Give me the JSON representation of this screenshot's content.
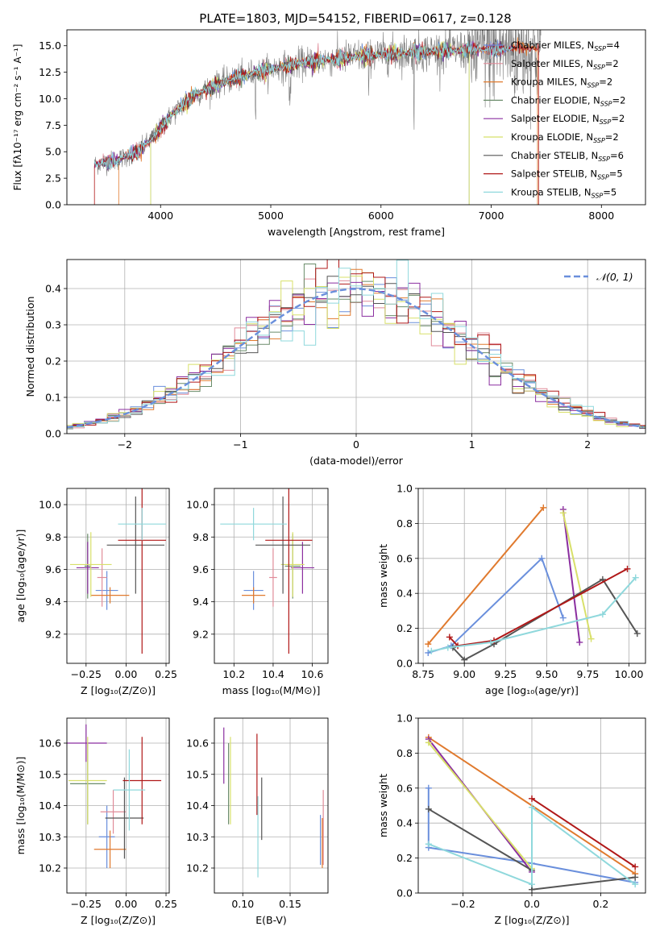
{
  "figure_title": "PLATE=1803, MJD=54152, FIBERID=0617, z=0.128",
  "colors": {
    "Chabrier MILES": "#6a8fdc",
    "Salpeter MILES": "#e08b99",
    "Kroupa MILES": "#e07a2e",
    "Chabrier ELODIE": "#6a8c6a",
    "Salpeter ELODIE": "#8b2fa0",
    "Kroupa ELODIE": "#d8e06a",
    "Chabrier STELIB": "#555555",
    "Salpeter STELIB": "#b01818",
    "Kroupa STELIB": "#8fd8dc",
    "data": "#808080",
    "normal": "#6a8fdc"
  },
  "chart_data": [
    {
      "id": "spectrum",
      "type": "line",
      "xlabel": "wavelength [Angstrom, rest frame]",
      "ylabel": "Flux [fλ10⁻¹⁷ erg cm⁻² s⁻¹ A⁻¹]",
      "xlim": [
        3150,
        8400
      ],
      "ylim": [
        0,
        16.5
      ],
      "xticks": [
        4000,
        5000,
        6000,
        7000,
        8000
      ],
      "yticks": [
        0.0,
        2.5,
        5.0,
        7.5,
        10.0,
        12.5,
        15.0
      ],
      "legend_position": "upper-right",
      "legend": [
        "Chabrier MILES, N_SSP=4",
        "Salpeter MILES, N_SSP=2",
        "Kroupa MILES, N_SSP=2",
        "Chabrier ELODIE, N_SSP=2",
        "Salpeter ELODIE, N_SSP=2",
        "Kroupa ELODIE, N_SSP=2",
        "Chabrier STELIB, N_SSP=6",
        "Salpeter STELIB, N_SSP=5",
        "Kroupa STELIB, N_SSP=5"
      ],
      "continuum": {
        "x": [
          3400,
          3600,
          3800,
          3950,
          4100,
          4300,
          4500,
          4800,
          5000,
          5300,
          5600,
          5900,
          6200,
          6500,
          6800,
          7100,
          7400
        ],
        "y": [
          3.8,
          4.2,
          5.0,
          6.5,
          8.5,
          10.3,
          11.3,
          12.3,
          12.8,
          13.4,
          13.8,
          14.1,
          14.3,
          14.5,
          14.6,
          14.7,
          14.8
        ]
      },
      "cutoffs": [
        {
          "model": "Kroupa MILES",
          "x_start": 3620,
          "x_end": 7420
        },
        {
          "model": "Kroupa ELODIE",
          "x_start": 3910,
          "x_end": 6800
        },
        {
          "model": "Chabrier ELODIE",
          "x_start": 3910,
          "x_end": 6800
        },
        {
          "model": "Salpeter STELIB",
          "x_start": 3400,
          "x_end": 7430
        }
      ]
    },
    {
      "id": "residuals",
      "type": "step",
      "xlabel": "(data-model)/error",
      "ylabel": "Normed distribution",
      "xlim": [
        -2.5,
        2.5
      ],
      "ylim": [
        0,
        0.48
      ],
      "xticks": [
        -2,
        -1,
        0,
        1,
        2
      ],
      "yticks": [
        0.0,
        0.1,
        0.2,
        0.3,
        0.4
      ],
      "legend": [
        "𝒩(0, 1)"
      ],
      "legend_position": "upper-right",
      "bin_width": 0.1,
      "grid": true
    },
    {
      "id": "age_vs_Z",
      "type": "errorbar",
      "xlabel": "Z [log₁₀(Z/Z⊙)]",
      "ylabel": "age  [log₁₀(age/yr)]",
      "xlim": [
        -0.37,
        0.27
      ],
      "ylim": [
        9.02,
        10.1
      ],
      "xticks": [
        -0.25,
        0.0,
        0.25
      ],
      "xticklabels": [
        "−0.25",
        "0.00",
        "0.25"
      ],
      "yticks": [
        9.2,
        9.4,
        9.6,
        9.8,
        10.0
      ],
      "grid": true,
      "points": [
        {
          "model": "Chabrier MILES",
          "x": -0.12,
          "xerr": 0.07,
          "y": 9.47,
          "yerr": 0.12
        },
        {
          "model": "Salpeter MILES",
          "x": -0.15,
          "xerr": 0.03,
          "y": 9.55,
          "yerr": 0.18
        },
        {
          "model": "Kroupa MILES",
          "x": -0.1,
          "xerr": 0.12,
          "y": 9.44,
          "yerr": 0.05
        },
        {
          "model": "Chabrier ELODIE",
          "x": -0.24,
          "xerr": 0.02,
          "y": 9.62,
          "yerr": 0.2
        },
        {
          "model": "Salpeter ELODIE",
          "x": -0.24,
          "xerr": 0.07,
          "y": 9.61,
          "yerr": 0.16
        },
        {
          "model": "Kroupa ELODIE",
          "x": -0.22,
          "xerr": 0.13,
          "y": 9.63,
          "yerr": 0.2
        },
        {
          "model": "Chabrier STELIB",
          "x": 0.06,
          "xerr": 0.18,
          "y": 9.75,
          "yerr": 0.3
        },
        {
          "model": "Salpeter STELIB",
          "x": 0.1,
          "xerr": 0.15,
          "y": 9.78,
          "yerr": 0.7
        },
        {
          "model": "Kroupa STELIB",
          "x": 0.1,
          "xerr": 0.15,
          "y": 9.88,
          "yerr": 0.1
        }
      ]
    },
    {
      "id": "age_vs_mass",
      "type": "errorbar",
      "xlabel": "mass [log₁₀(M/M⊙)]",
      "ylabel": "",
      "xlim": [
        10.1,
        10.68
      ],
      "ylim": [
        9.02,
        10.1
      ],
      "xticks": [
        10.2,
        10.4,
        10.6
      ],
      "yticks": [
        9.2,
        9.4,
        9.6,
        9.8,
        10.0
      ],
      "grid": true,
      "points": [
        {
          "model": "Chabrier MILES",
          "x": 10.3,
          "xerr": 0.05,
          "y": 9.47,
          "yerr": 0.12
        },
        {
          "model": "Salpeter MILES",
          "x": 10.4,
          "xerr": 0.02,
          "y": 9.55,
          "yerr": 0.18
        },
        {
          "model": "Kroupa MILES",
          "x": 10.3,
          "xerr": 0.06,
          "y": 9.44,
          "yerr": 0.05
        },
        {
          "model": "Chabrier ELODIE",
          "x": 10.5,
          "xerr": 0.04,
          "y": 9.62,
          "yerr": 0.2
        },
        {
          "model": "Salpeter ELODIE",
          "x": 10.55,
          "xerr": 0.06,
          "y": 9.61,
          "yerr": 0.16
        },
        {
          "model": "Kroupa ELODIE",
          "x": 10.5,
          "xerr": 0.06,
          "y": 9.63,
          "yerr": 0.2
        },
        {
          "model": "Chabrier STELIB",
          "x": 10.45,
          "xerr": 0.14,
          "y": 9.75,
          "yerr": 0.3
        },
        {
          "model": "Salpeter STELIB",
          "x": 10.48,
          "xerr": 0.12,
          "y": 9.78,
          "yerr": 0.7
        },
        {
          "model": "Kroupa STELIB",
          "x": 10.3,
          "xerr": 0.17,
          "y": 9.88,
          "yerr": 0.1
        }
      ]
    },
    {
      "id": "weight_vs_age",
      "type": "line",
      "xlabel": "age  [log₁₀(age/yr)]",
      "ylabel": "mass weight",
      "xlim": [
        8.72,
        10.1
      ],
      "ylim": [
        0,
        1
      ],
      "xticks": [
        8.75,
        9.0,
        9.25,
        9.5,
        9.75,
        10.0
      ],
      "xticklabels": [
        "8.75",
        "9.00",
        "9.25",
        "9.50",
        "9.75",
        "10.00"
      ],
      "yticks": [
        0.0,
        0.2,
        0.4,
        0.6,
        0.8,
        1.0
      ],
      "grid": true,
      "series": [
        {
          "model": "Chabrier MILES",
          "x": [
            8.78,
            8.92,
            9.47,
            9.6
          ],
          "y": [
            0.06,
            0.1,
            0.6,
            0.26
          ]
        },
        {
          "model": "Kroupa MILES",
          "x": [
            8.78,
            9.48
          ],
          "y": [
            0.11,
            0.89
          ]
        },
        {
          "model": "Salpeter ELODIE",
          "x": [
            9.6,
            9.7
          ],
          "y": [
            0.88,
            0.12
          ]
        },
        {
          "model": "Kroupa ELODIE",
          "x": [
            9.6,
            9.77
          ],
          "y": [
            0.86,
            0.14
          ]
        },
        {
          "model": "Chabrier STELIB",
          "x": [
            8.93,
            9.0,
            9.18,
            9.84,
            10.05
          ],
          "y": [
            0.09,
            0.02,
            0.11,
            0.48,
            0.17
          ]
        },
        {
          "model": "Salpeter STELIB",
          "x": [
            8.91,
            8.96,
            9.18,
            9.99
          ],
          "y": [
            0.15,
            0.1,
            0.13,
            0.54
          ]
        },
        {
          "model": "Kroupa STELIB",
          "x": [
            8.8,
            8.9,
            9.16,
            9.84,
            10.04
          ],
          "y": [
            0.07,
            0.09,
            0.12,
            0.28,
            0.49
          ]
        }
      ]
    },
    {
      "id": "mass_vs_Z",
      "type": "errorbar",
      "xlabel": "Z [log₁₀(Z/Z⊙)]",
      "ylabel": "mass [log₁₀(M/M⊙)]",
      "xlim": [
        -0.37,
        0.27
      ],
      "ylim": [
        10.12,
        10.68
      ],
      "xticks": [
        -0.25,
        0.0,
        0.25
      ],
      "xticklabels": [
        "−0.25",
        "0.00",
        "0.25"
      ],
      "yticks": [
        10.2,
        10.3,
        10.4,
        10.5,
        10.6
      ],
      "grid": true,
      "points": [
        {
          "model": "Chabrier MILES",
          "x": -0.12,
          "xerr": 0.05,
          "y": 10.3,
          "yerr": 0.1
        },
        {
          "model": "Salpeter MILES",
          "x": -0.08,
          "xerr": 0.08,
          "y": 10.38,
          "yerr": 0.07
        },
        {
          "model": "Kroupa MILES",
          "x": -0.1,
          "xerr": 0.1,
          "y": 10.26,
          "yerr": 0.06
        },
        {
          "model": "Chabrier ELODIE",
          "x": -0.24,
          "xerr": 0.11,
          "y": 10.47,
          "yerr": 0.13
        },
        {
          "model": "Salpeter ELODIE",
          "x": -0.25,
          "xerr": 0.13,
          "y": 10.6,
          "yerr": 0.06
        },
        {
          "model": "Kroupa ELODIE",
          "x": -0.24,
          "xerr": 0.12,
          "y": 10.48,
          "yerr": 0.14
        },
        {
          "model": "Chabrier STELIB",
          "x": -0.01,
          "xerr": 0.12,
          "y": 10.36,
          "yerr": 0.13
        },
        {
          "model": "Salpeter STELIB",
          "x": 0.1,
          "xerr": 0.12,
          "y": 10.48,
          "yerr": 0.14
        },
        {
          "model": "Kroupa STELIB",
          "x": 0.02,
          "xerr": 0.1,
          "y": 10.45,
          "yerr": 0.13
        }
      ]
    },
    {
      "id": "mass_vs_ebv",
      "type": "errorbar",
      "xlabel": "E(B-V)",
      "ylabel": "",
      "xlim": [
        0.07,
        0.19
      ],
      "ylim": [
        10.12,
        10.68
      ],
      "xticks": [
        0.1,
        0.15
      ],
      "xticklabels": [
        "0.10",
        "0.15"
      ],
      "yticks": [
        10.2,
        10.3,
        10.4,
        10.5,
        10.6
      ],
      "grid": true,
      "points": [
        {
          "model": "Chabrier MILES",
          "x": 0.182,
          "xerr": 0,
          "y": 10.29,
          "yerr": 0.08
        },
        {
          "model": "Salpeter MILES",
          "x": 0.185,
          "xerr": 0,
          "y": 10.33,
          "yerr": 0.12
        },
        {
          "model": "Kroupa MILES",
          "x": 0.184,
          "xerr": 0,
          "y": 10.28,
          "yerr": 0.08
        },
        {
          "model": "Chabrier ELODIE",
          "x": 0.085,
          "xerr": 0,
          "y": 10.47,
          "yerr": 0.13
        },
        {
          "model": "Salpeter ELODIE",
          "x": 0.08,
          "xerr": 0,
          "y": 10.56,
          "yerr": 0.09
        },
        {
          "model": "Kroupa ELODIE",
          "x": 0.087,
          "xerr": 0,
          "y": 10.48,
          "yerr": 0.14
        },
        {
          "model": "Chabrier STELIB",
          "x": 0.12,
          "xerr": 0,
          "y": 10.39,
          "yerr": 0.1
        },
        {
          "model": "Salpeter STELIB",
          "x": 0.115,
          "xerr": 0,
          "y": 10.5,
          "yerr": 0.13
        },
        {
          "model": "Kroupa STELIB",
          "x": 0.116,
          "xerr": 0,
          "y": 10.3,
          "yerr": 0.13
        }
      ]
    },
    {
      "id": "weight_vs_Z",
      "type": "line",
      "xlabel": "Z [log₁₀(Z/Z⊙)]",
      "ylabel": "mass weight",
      "xlim": [
        -0.33,
        0.33
      ],
      "ylim": [
        0,
        1
      ],
      "xticks": [
        -0.2,
        0.0,
        0.2
      ],
      "xticklabels": [
        "−0.2",
        "0.0",
        "0.2"
      ],
      "yticks": [
        0.0,
        0.2,
        0.4,
        0.6,
        0.8,
        1.0
      ],
      "grid": true,
      "series": [
        {
          "model": "Chabrier MILES",
          "x": [
            -0.3,
            -0.3,
            0.0,
            0.3
          ],
          "y": [
            0.6,
            0.26,
            0.17,
            0.06
          ]
        },
        {
          "model": "Kroupa MILES",
          "x": [
            -0.3,
            0.3
          ],
          "y": [
            0.89,
            0.11
          ]
        },
        {
          "model": "Salpeter ELODIE",
          "x": [
            -0.3,
            0.0
          ],
          "y": [
            0.88,
            0.12
          ]
        },
        {
          "model": "Kroupa ELODIE",
          "x": [
            -0.3,
            0.0
          ],
          "y": [
            0.86,
            0.14
          ]
        },
        {
          "model": "Chabrier STELIB",
          "x": [
            -0.3,
            0.0,
            0.0,
            0.3
          ],
          "y": [
            0.48,
            0.13,
            0.02,
            0.09
          ]
        },
        {
          "model": "Salpeter STELIB",
          "x": [
            0.0,
            0.3
          ],
          "y": [
            0.54,
            0.15
          ]
        },
        {
          "model": "Kroupa STELIB",
          "x": [
            -0.3,
            0.0,
            0.0,
            0.3
          ],
          "y": [
            0.28,
            0.05,
            0.49,
            0.05
          ]
        }
      ]
    }
  ]
}
